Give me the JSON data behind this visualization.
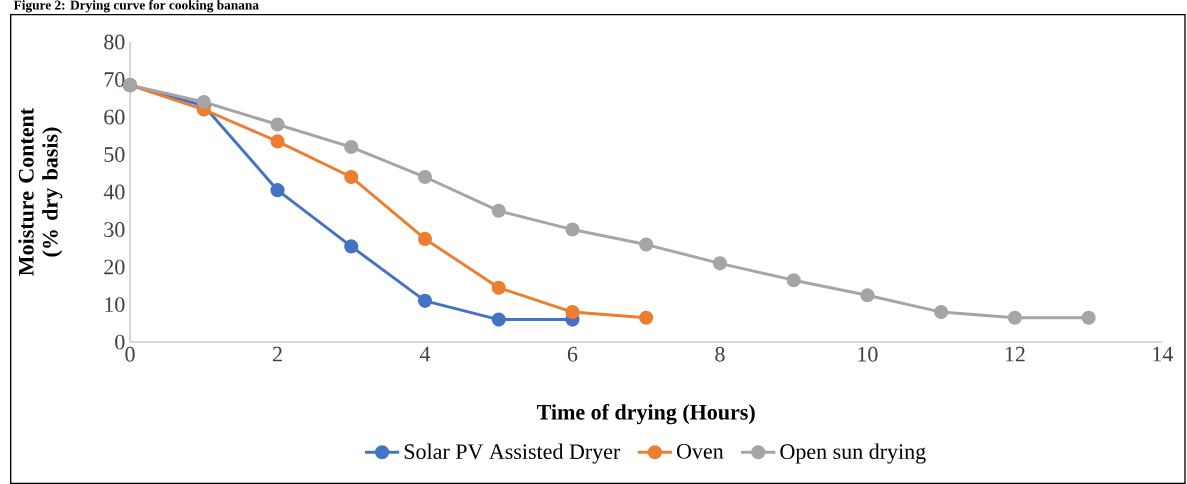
{
  "chart_data": {
    "type": "line",
    "title": "Figure 2: Drying curve for cooking banana",
    "xlabel": "Time of drying (Hours)",
    "ylabel": "Moisture Content (%  dry basis)",
    "xlim": [
      0,
      14
    ],
    "xticks": [
      0,
      2,
      4,
      6,
      8,
      10,
      12,
      14
    ],
    "ylim": [
      0,
      80
    ],
    "yticks": [
      0,
      10,
      20,
      30,
      40,
      50,
      60,
      70,
      80
    ],
    "legend": "bottom",
    "marker": "circle",
    "series": [
      {
        "name": "Solar PV Assisted Dryer",
        "color": "#4472c4",
        "x": [
          0,
          1,
          2,
          3,
          4,
          5,
          6
        ],
        "values": [
          68.5,
          63,
          40.5,
          25.5,
          11,
          6,
          6
        ]
      },
      {
        "name": "Oven",
        "color": "#ed7d31",
        "x": [
          0,
          1,
          2,
          3,
          4,
          5,
          6,
          7
        ],
        "values": [
          68.5,
          62,
          53.5,
          44,
          27.5,
          14.5,
          8,
          6.5
        ]
      },
      {
        "name": "Open sun drying",
        "color": "#a5a5a5",
        "x": [
          0,
          1,
          2,
          3,
          4,
          5,
          6,
          7,
          8,
          9,
          10,
          11,
          12,
          13
        ],
        "values": [
          68.5,
          64,
          58,
          52,
          44,
          35,
          30,
          26,
          21,
          16.5,
          12.5,
          8,
          6.5,
          6.5
        ]
      }
    ]
  }
}
